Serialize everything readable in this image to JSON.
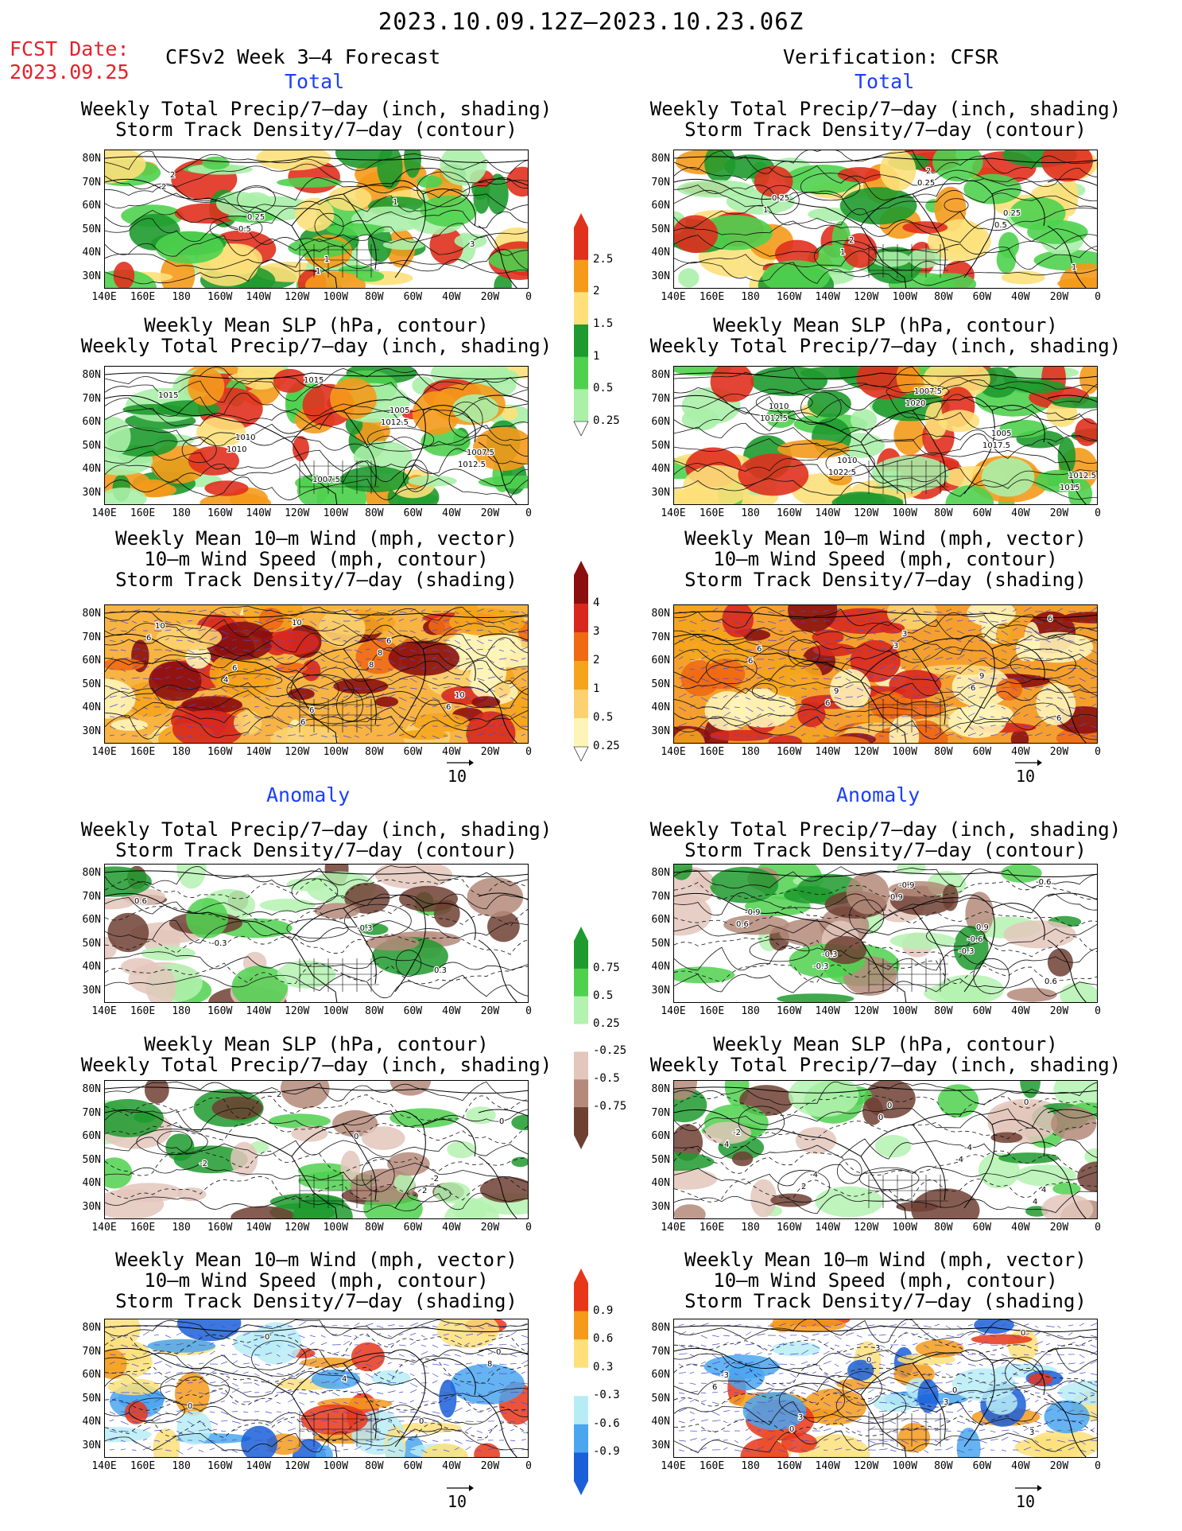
{
  "header": {
    "period": "2023.10.09.12Z–2023.10.23.06Z",
    "fcst_date_label": "FCST Date:",
    "fcst_date": "2023.09.25",
    "left_title": "CFSv2 Week 3–4 Forecast",
    "right_title": "Verification: CFSR"
  },
  "sections": {
    "total": "Total",
    "anomaly": "Anomaly"
  },
  "panel_titles": {
    "precip_storm": [
      "Weekly Total Precip/7–day (inch, shading)",
      "Storm Track Density/7–day (contour)"
    ],
    "slp_precip": [
      "Weekly Mean SLP (hPa, contour)",
      "Weekly Total Precip/7–day (inch, shading)"
    ],
    "wind_storm": [
      "Weekly Mean 10–m Wind (mph, vector)",
      "10–m Wind Speed (mph, contour)",
      "Storm Track Density/7–day (shading)"
    ]
  },
  "axes": {
    "lat_labels": [
      "80N",
      "70N",
      "60N",
      "50N",
      "40N",
      "30N"
    ],
    "lon_labels": [
      "140E",
      "160E",
      "180",
      "160W",
      "140W",
      "120W",
      "100W",
      "80W",
      "60W",
      "40W",
      "20W",
      "0"
    ]
  },
  "vector_ref": "10",
  "colorbars": {
    "total_precip": {
      "labels": [
        "2.5",
        "2",
        "1.5",
        "1",
        "0.5",
        "0.25"
      ],
      "colors": [
        "#e0301e",
        "#f59a1b",
        "#fde07a",
        "#1f9a2e",
        "#4fd14f",
        "#aaf0a8"
      ]
    },
    "total_storm": {
      "labels": [
        "4",
        "3",
        "2",
        "1",
        "0.5",
        "0.25"
      ],
      "colors": [
        "#8b0f0f",
        "#d8281e",
        "#f06a14",
        "#f5a41c",
        "#fcd270",
        "#fff4b8"
      ]
    },
    "anom_precip": {
      "labels": [
        "0.75",
        "0.5",
        "0.25",
        "-0.25",
        "-0.5",
        "-0.75"
      ],
      "colors": [
        "#1f9a2e",
        "#4fd14f",
        "#b4f2b0",
        "#ffffff",
        "#e3c7bc",
        "#b48a7a",
        "#6e4032"
      ]
    },
    "anom_storm": {
      "labels": [
        "0.9",
        "0.6",
        "0.3",
        "-0.3",
        "-0.6",
        "-0.9"
      ],
      "colors": [
        "#e8361a",
        "#f59a1b",
        "#fde07a",
        "#ffffff",
        "#b8ecf5",
        "#4aa6ee",
        "#1a5fd8"
      ]
    }
  },
  "contour_labels": {
    "p1": [
      "2",
      "0.5",
      "1",
      "1",
      "3",
      "2",
      "0.25",
      "1"
    ],
    "p2": [
      "1",
      "1",
      "0.25",
      "0.5",
      "1",
      "0.25",
      "2",
      "2",
      "0.25"
    ],
    "p3": [
      "1010",
      "1015",
      "1012.5",
      "1012.5",
      "1015",
      "1010",
      "1007.5",
      "1005",
      "1007.5"
    ],
    "p4": [
      "1022.5",
      "1020",
      "1017.5",
      "1015",
      "1012.5",
      "1010",
      "1007.5",
      "1005",
      "1012.5",
      "1010"
    ],
    "p5": [
      "10",
      "8",
      "6",
      "6",
      "4",
      "6",
      "8",
      "10",
      "10",
      "6",
      "6",
      "6"
    ],
    "p6": [
      "3",
      "6",
      "6",
      "6",
      "6",
      "3",
      "9",
      "6",
      "6",
      "9"
    ],
    "p7": [
      "-0.3",
      "0.3",
      "0.6",
      "-0.3"
    ],
    "p8": [
      "-0.3",
      "-0.6",
      "0.6",
      "-0.3",
      "0.9",
      "-0.6",
      "0.6",
      "-0.9",
      "-0.3",
      "-0.9",
      "0.9"
    ],
    "p9": [
      "2",
      "0",
      "-2",
      "2",
      "0",
      "-2"
    ],
    "p10": [
      "0",
      "4",
      "2",
      "0",
      "-4",
      "4",
      "-2",
      "-4",
      "0",
      "-4",
      "4"
    ],
    "p11": [
      "8",
      "0",
      "0",
      "4",
      "0",
      "0"
    ],
    "p12": [
      "6",
      "0",
      "0",
      "3",
      "0",
      "-3",
      "3",
      "3",
      "0",
      "3"
    ]
  }
}
